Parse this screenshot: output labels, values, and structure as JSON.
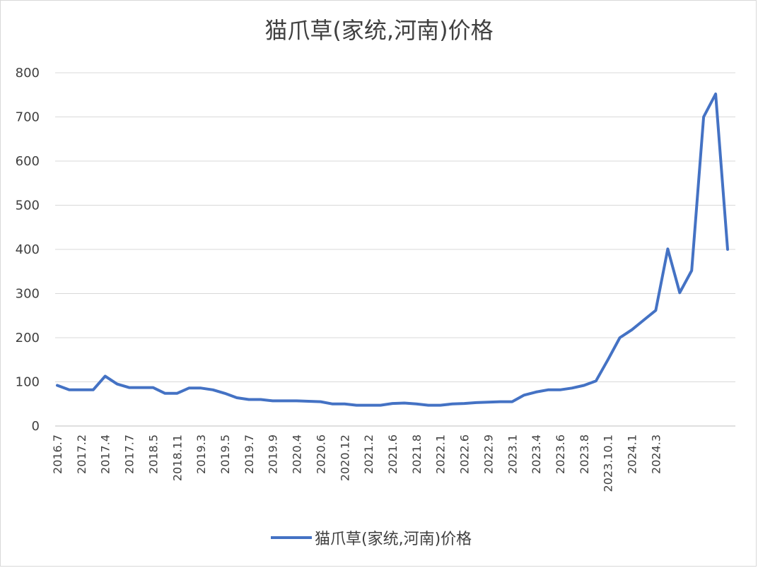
{
  "chart_data": {
    "type": "line",
    "title": "猫爪草(家统,河南)价格",
    "xlabel": "",
    "ylabel": "",
    "ylim": [
      0,
      800
    ],
    "y_ticks": [
      0,
      100,
      200,
      300,
      400,
      500,
      600,
      700,
      800
    ],
    "x_tick_labels": [
      "2016.7",
      "2017.2",
      "2017.4",
      "2017.7",
      "2018.5",
      "2018.11",
      "2019.3",
      "2019.5",
      "2019.7",
      "2019.9",
      "2020.4",
      "2020.6",
      "2020.12",
      "2021.2",
      "2021.6",
      "2021.8",
      "2022.1",
      "2022.6",
      "2022.9",
      "2023.1",
      "2023.4",
      "2023.6",
      "2023.8",
      "2023.10.1",
      "2024.1",
      "2024.3"
    ],
    "grid": true,
    "legend_position": "bottom",
    "series": [
      {
        "name": "猫爪草(家统,河南)价格",
        "color": "#4472c4",
        "values": [
          92,
          82,
          82,
          82,
          113,
          95,
          87,
          87,
          87,
          74,
          74,
          86,
          86,
          82,
          74,
          64,
          60,
          60,
          57,
          57,
          57,
          56,
          55,
          50,
          50,
          47,
          47,
          47,
          51,
          52,
          50,
          47,
          47,
          50,
          51,
          53,
          54,
          55,
          55,
          70,
          77,
          82,
          82,
          86,
          92,
          102,
          150,
          200,
          218,
          240,
          262,
          401,
          302,
          352,
          700,
          752,
          400
        ]
      }
    ]
  }
}
